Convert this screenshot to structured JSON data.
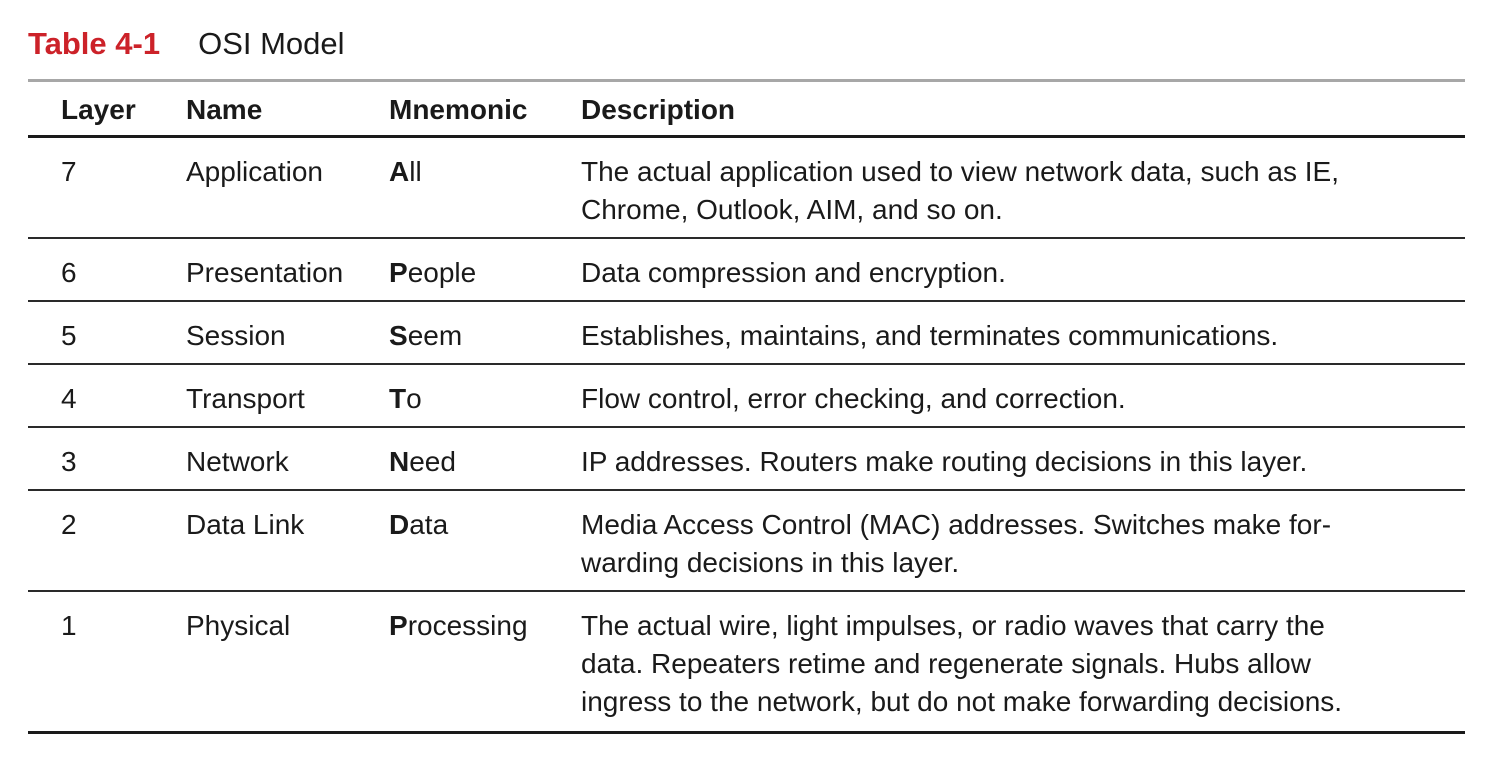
{
  "caption": {
    "table_number": "Table 4-1",
    "title": "OSI Model"
  },
  "headers": {
    "layer": "Layer",
    "name": "Name",
    "mnemonic": "Mnemonic",
    "description": "Description"
  },
  "rows": [
    {
      "layer": "7",
      "name": "Application",
      "mnemonic_first": "A",
      "mnemonic_rest": "ll",
      "description_lines": [
        "The actual application used to view network data, such as IE,",
        "Chrome, Outlook, AIM, and so on."
      ]
    },
    {
      "layer": "6",
      "name": "Presentation",
      "mnemonic_first": "P",
      "mnemonic_rest": "eople",
      "description_lines": [
        "Data compression and encryption."
      ]
    },
    {
      "layer": "5",
      "name": "Session",
      "mnemonic_first": "S",
      "mnemonic_rest": "eem",
      "description_lines": [
        "Establishes, maintains, and terminates communications."
      ]
    },
    {
      "layer": "4",
      "name": "Transport",
      "mnemonic_first": "T",
      "mnemonic_rest": "o",
      "description_lines": [
        "Flow control, error checking, and correction."
      ]
    },
    {
      "layer": "3",
      "name": "Network",
      "mnemonic_first": "N",
      "mnemonic_rest": "eed",
      "description_lines": [
        "IP addresses. Routers make routing decisions in this layer."
      ]
    },
    {
      "layer": "2",
      "name": "Data Link",
      "mnemonic_first": "D",
      "mnemonic_rest": "ata",
      "description_lines": [
        "Media Access Control (MAC) addresses. Switches make for-",
        "warding decisions in this layer."
      ]
    },
    {
      "layer": "1",
      "name": "Physical",
      "mnemonic_first": "P",
      "mnemonic_rest": "rocessing",
      "description_lines": [
        "The actual wire, light impulses, or radio waves that carry the",
        "data. Repeaters retime and regenerate signals. Hubs allow",
        "ingress to the network, but do not make forwarding decisions."
      ]
    }
  ],
  "colors": {
    "caption_number": "#cc2229",
    "text": "#1a1a1a",
    "top_rule": "#a7a7a7"
  }
}
